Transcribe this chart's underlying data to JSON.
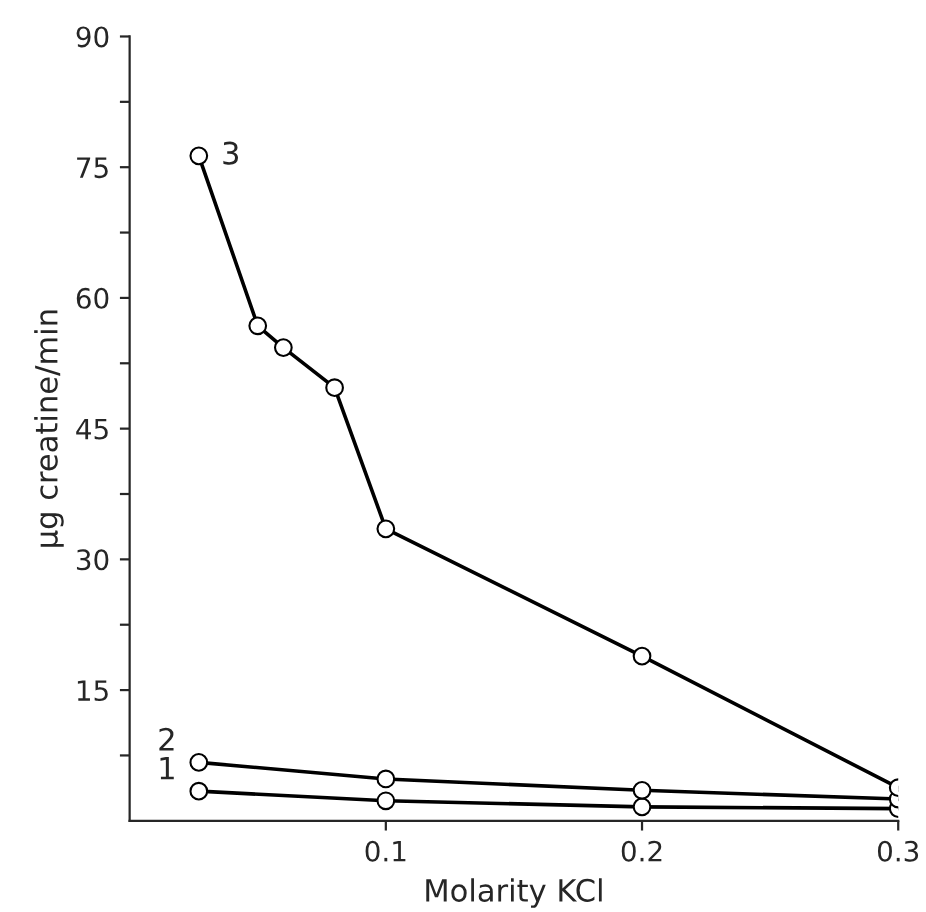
{
  "chart_data": {
    "type": "line",
    "xlabel": "Molarity KCl",
    "ylabel": "μg creatine/min",
    "marker": "circle",
    "line_style": "solid",
    "grid": false,
    "legend": false,
    "xlim": [
      0,
      0.3
    ],
    "xticks": [
      0.1,
      0.2,
      0.3
    ],
    "ylim": [
      0,
      90
    ],
    "yticks": [
      {
        "value": 7.5,
        "label": null
      },
      15,
      {
        "value": 22.5,
        "label": null
      },
      30,
      {
        "value": 37.5,
        "label": null
      },
      45,
      {
        "value": 52.5,
        "label": null
      },
      60,
      {
        "value": 67.5,
        "label": null
      },
      75,
      {
        "value": 82.5,
        "label": null
      },
      90
    ],
    "series": [
      {
        "name": "1",
        "color": "#000000",
        "x": [
          0.027,
          0.1,
          0.2,
          0.3
        ],
        "values": [
          3.4,
          2.3,
          1.6,
          1.4
        ]
      },
      {
        "name": "2",
        "color": "#000000",
        "x": [
          0.027,
          0.1,
          0.2,
          0.3
        ],
        "values": [
          6.7,
          4.8,
          3.5,
          2.5
        ]
      },
      {
        "name": "3",
        "color": "#000000",
        "x": [
          0.027,
          0.05,
          0.06,
          0.08,
          0.1,
          0.2,
          0.3
        ],
        "values": [
          76.3,
          56.8,
          54.3,
          49.7,
          33.5,
          18.9,
          3.8
        ]
      }
    ]
  }
}
